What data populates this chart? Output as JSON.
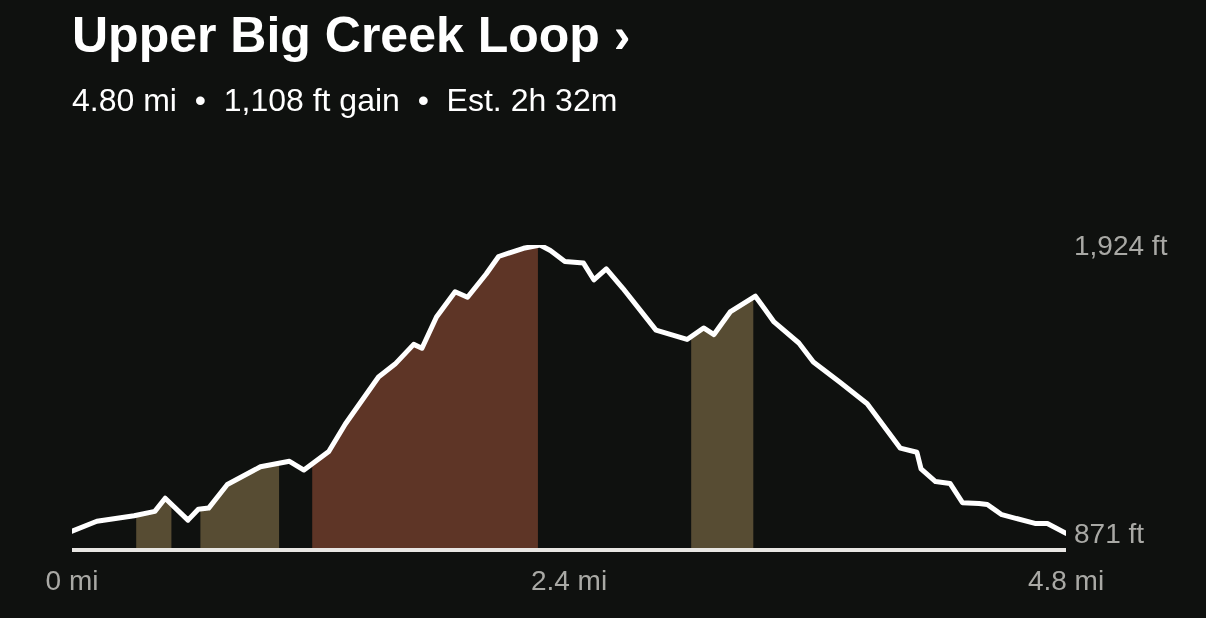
{
  "chart_data": {
    "type": "line",
    "title": "Upper Big Creek Loop ›",
    "subtitle": "4.80 mi  •  1,108 ft gain  •  Est. 2h 32m",
    "x": [
      0,
      0.12,
      0.3,
      0.4,
      0.45,
      0.56,
      0.61,
      0.66,
      0.75,
      0.91,
      1.05,
      1.12,
      1.24,
      1.32,
      1.48,
      1.56,
      1.65,
      1.69,
      1.76,
      1.85,
      1.91,
      2.0,
      2.06,
      2.18,
      2.26,
      2.31,
      2.38,
      2.47,
      2.52,
      2.58,
      2.66,
      2.82,
      2.97,
      3.05,
      3.1,
      3.18,
      3.3,
      3.39,
      3.51,
      3.58,
      3.71,
      3.84,
      4.0,
      4.08,
      4.1,
      4.17,
      4.24,
      4.3,
      4.38,
      4.42,
      4.49,
      4.65,
      4.71,
      4.8
    ],
    "series": [
      {
        "type": "area",
        "color": "#574c33",
        "x": [
          0.31,
          0.4,
          0.45,
          0.48
        ],
        "values": [
          937,
          951,
          999,
          977
        ]
      },
      {
        "type": "area",
        "color": "#574c33",
        "x": [
          0.62,
          0.66,
          0.75,
          0.91,
          1.0
        ],
        "values": [
          960,
          963,
          1049,
          1114,
          1127
        ]
      },
      {
        "type": "area",
        "color": "#5e3526",
        "x": [
          1.16,
          1.24,
          1.32,
          1.48,
          1.56,
          1.65,
          1.69,
          1.76,
          1.85,
          1.91,
          2.0,
          2.06,
          2.18,
          2.25
        ],
        "values": [
          1125,
          1170,
          1270,
          1442,
          1489,
          1561,
          1547,
          1661,
          1753,
          1733,
          1818,
          1882,
          1912,
          1922
        ]
      },
      {
        "type": "area",
        "color": "#574c33",
        "x": [
          2.99,
          3.05,
          3.1,
          3.18,
          3.29
        ],
        "values": [
          1590,
          1621,
          1597,
          1681,
          1732
        ]
      },
      {
        "color": "#ffffff",
        "values": [
          879,
          915,
          935,
          951,
          999,
          919,
          959,
          963,
          1049,
          1114,
          1134,
          1102,
          1170,
          1270,
          1442,
          1489,
          1561,
          1547,
          1661,
          1753,
          1733,
          1818,
          1882,
          1912,
          1924,
          1904,
          1864,
          1858,
          1797,
          1837,
          1766,
          1613,
          1579,
          1621,
          1597,
          1681,
          1737,
          1643,
          1566,
          1497,
          1422,
          1344,
          1182,
          1167,
          1106,
          1060,
          1053,
          983,
          980,
          976,
          939,
          907,
          907,
          871
        ]
      }
    ],
    "xlim": [
      0,
      4.8
    ],
    "xticks": [
      {
        "value": 0,
        "label": "0 mi"
      },
      {
        "value": 2.4,
        "label": "2.4 mi"
      },
      {
        "value": 4.8,
        "label": "4.8 mi"
      }
    ],
    "ylim": [
      810,
      1924
    ],
    "yticks": [
      {
        "value": 871,
        "label": "871 ft"
      },
      {
        "value": 1924,
        "label": "1,924 ft"
      }
    ],
    "grid": false,
    "legend": false,
    "marker": "none",
    "line_style": "solid"
  }
}
